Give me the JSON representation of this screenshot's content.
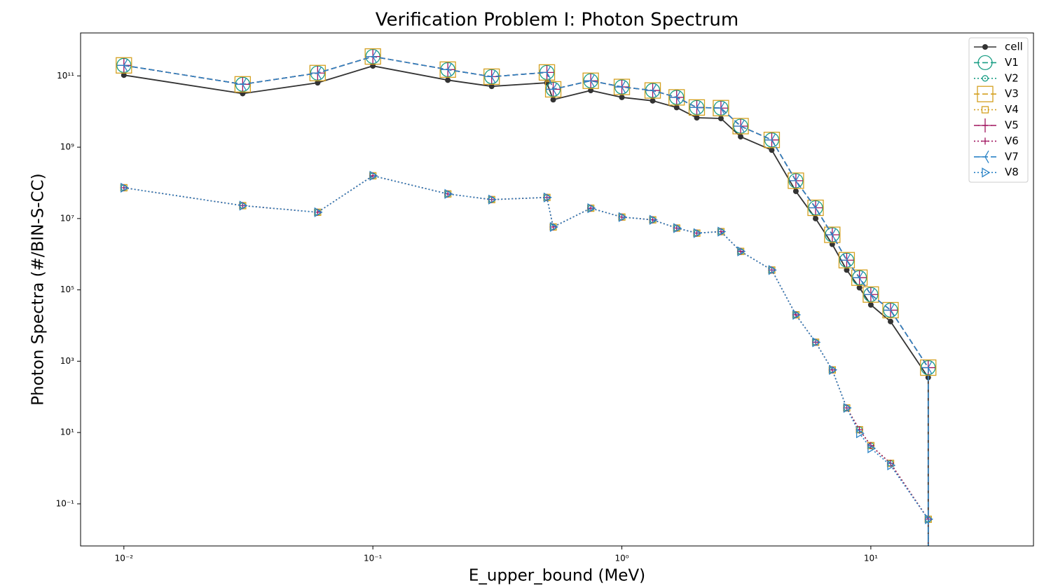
{
  "chart_data": {
    "type": "line",
    "title": "Verification Problem I: Photon Spectrum",
    "x_label": "E_upper_bound (MeV)",
    "y_label": "Photon Spectra (#/BIN-S-CC)",
    "x": [
      0.01,
      0.03,
      0.06,
      0.1,
      0.2,
      0.3,
      0.5,
      0.53,
      0.75,
      1.0,
      1.33,
      1.66,
      2.0,
      2.5,
      3.0,
      4.0,
      5.0,
      6.0,
      7.0,
      8.0,
      9.0,
      10.0,
      12.0,
      17.0,
      17.0
    ],
    "xscale": "log",
    "yscale": "log",
    "xlim": [
      0.0067,
      45
    ],
    "ylim": [
      0.0066,
      1600000000000.0
    ],
    "xticks": [
      {
        "value": 0.01,
        "label": "10⁻²"
      },
      {
        "value": 0.1,
        "label": "10⁻¹"
      },
      {
        "value": 1,
        "label": "10⁰"
      },
      {
        "value": 10,
        "label": "10¹"
      }
    ],
    "yticks": [
      {
        "value": 0.1,
        "label": "10⁻¹"
      },
      {
        "value": 10,
        "label": "10¹"
      },
      {
        "value": 1000,
        "label": "10³"
      },
      {
        "value": 100000,
        "label": "10⁵"
      },
      {
        "value": 10000000,
        "label": "10⁷"
      },
      {
        "value": 1000000000,
        "label": "10⁹"
      },
      {
        "value": 100000000000,
        "label": "10¹¹"
      }
    ],
    "grid": false,
    "legend": "upper right",
    "series": [
      {
        "name": "cell",
        "color": "#333333",
        "dash": "solid",
        "marker": "dot",
        "values": [
          105000000000.0,
          32000000000.0,
          64000000000.0,
          190000000000.0,
          76000000000.0,
          51000000000.0,
          64000000000.0,
          21500000000.0,
          39000000000.0,
          25000000000.0,
          20000000000.0,
          13000000000.0,
          6700000000.0,
          6400000000.0,
          1970000000.0,
          830000000.0,
          58000000.0,
          10000000.0,
          1900000.0,
          360000.0,
          115000.0,
          38000.0,
          13000.0,
          350,
          0
        ]
      },
      {
        "name": "V1",
        "color": "#1a9e85",
        "dash": "dashed",
        "marker": "circle-big",
        "values": [
          197000000000.0,
          58000000000.0,
          120000000000.0,
          350000000000.0,
          150000000000.0,
          95000000000.0,
          125000000000.0,
          42000000000.0,
          73000000000.0,
          49000000000.0,
          39000000000.0,
          25000000000.0,
          13000000000.0,
          12500000000.0,
          3900000000.0,
          1600000000.0,
          115000000.0,
          20000000.0,
          3500000.0,
          680000.0,
          220000.0,
          74000.0,
          27000.0,
          660,
          0
        ]
      },
      {
        "name": "V2",
        "color": "#1a9e85",
        "dash": "dotted",
        "marker": "circle-small",
        "values": [
          73000000.0,
          23000000.0,
          15000000.0,
          158000000.0,
          49000000.0,
          34000000.0,
          39000000.0,
          5800000.0,
          19500000.0,
          11000000.0,
          9200000.0,
          5400000.0,
          3900000.0,
          4300000.0,
          1200000.0,
          360000.0,
          20000.0,
          3400,
          570,
          49,
          12,
          4.3,
          1.37,
          0.037,
          0
        ]
      },
      {
        "name": "V3",
        "color": "#d4a020",
        "dash": "dashed",
        "marker": "square-big",
        "values": [
          197000000000.0,
          58000000000.0,
          120000000000.0,
          350000000000.0,
          150000000000.0,
          95000000000.0,
          125000000000.0,
          42000000000.0,
          73000000000.0,
          49000000000.0,
          39000000000.0,
          25000000000.0,
          13000000000.0,
          12500000000.0,
          3900000000.0,
          1600000000.0,
          115000000.0,
          20000000.0,
          3500000.0,
          680000.0,
          220000.0,
          74000.0,
          27000.0,
          660,
          0
        ]
      },
      {
        "name": "V4",
        "color": "#d4a020",
        "dash": "dotted",
        "marker": "square-small",
        "values": [
          73000000.0,
          23000000.0,
          15000000.0,
          158000000.0,
          49000000.0,
          34000000.0,
          39000000.0,
          5800000.0,
          19500000.0,
          11000000.0,
          9200000.0,
          5400000.0,
          3900000.0,
          4300000.0,
          1200000.0,
          360000.0,
          20000.0,
          3400,
          570,
          49,
          12,
          4.3,
          1.37,
          0.037,
          0
        ]
      },
      {
        "name": "V5",
        "color": "#a0155f",
        "dash": "dashed",
        "marker": "plus-big",
        "values": [
          197000000000.0,
          58000000000.0,
          120000000000.0,
          350000000000.0,
          150000000000.0,
          95000000000.0,
          125000000000.0,
          42000000000.0,
          73000000000.0,
          49000000000.0,
          39000000000.0,
          25000000000.0,
          13000000000.0,
          12500000000.0,
          3900000000.0,
          1600000000.0,
          115000000.0,
          20000000.0,
          3500000.0,
          680000.0,
          220000.0,
          74000.0,
          27000.0,
          660,
          0
        ]
      },
      {
        "name": "V6",
        "color": "#a0155f",
        "dash": "dotted",
        "marker": "plus-small",
        "values": [
          73000000.0,
          23000000.0,
          15000000.0,
          158000000.0,
          49000000.0,
          34000000.0,
          39000000.0,
          5800000.0,
          19500000.0,
          11000000.0,
          9200000.0,
          5400000.0,
          3900000.0,
          4300000.0,
          1200000.0,
          360000.0,
          20000.0,
          3400,
          570,
          49,
          12,
          4.3,
          1.37,
          0.037,
          0
        ]
      },
      {
        "name": "V7",
        "color": "#2b83c6",
        "dash": "dashed",
        "marker": "tri-left",
        "values": [
          197000000000.0,
          58000000000.0,
          120000000000.0,
          350000000000.0,
          150000000000.0,
          95000000000.0,
          125000000000.0,
          42000000000.0,
          73000000000.0,
          49000000000.0,
          39000000000.0,
          25000000000.0,
          13000000000.0,
          12500000000.0,
          3900000000.0,
          1600000000.0,
          115000000.0,
          20000000.0,
          3500000.0,
          680000.0,
          220000.0,
          74000.0,
          27000.0,
          660,
          0
        ]
      },
      {
        "name": "V8",
        "color": "#2b83c6",
        "dash": "dotted",
        "marker": "triangle-right",
        "values": [
          73000000.0,
          23000000.0,
          15000000.0,
          158000000.0,
          49000000.0,
          34000000.0,
          39000000.0,
          5800000.0,
          19500000.0,
          11000000.0,
          9200000.0,
          5400000.0,
          3900000.0,
          4300000.0,
          1200000.0,
          360000.0,
          20000.0,
          3400,
          570,
          49,
          9.5,
          3.6,
          1.2,
          0.037,
          0
        ]
      }
    ]
  }
}
